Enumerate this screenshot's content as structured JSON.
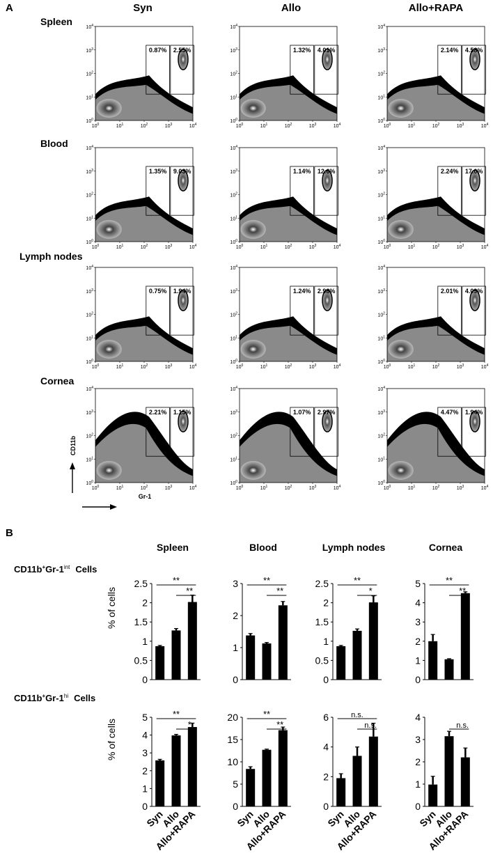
{
  "panel_a": {
    "label": "A",
    "columns": [
      "Syn",
      "Allo",
      "Allo+RAPA"
    ],
    "rows": [
      "Spleen",
      "Blood",
      "Lymph nodes",
      "Cornea"
    ],
    "y_axis_label": "CD11b",
    "x_axis_label": "Gr-1",
    "tick_labels": [
      "10^0",
      "10^1",
      "10^2",
      "10^3",
      "10^4"
    ],
    "gates": [
      [
        [
          "0.87%",
          "2.55%"
        ],
        [
          "1.32%",
          "4.01%"
        ],
        [
          "2.14%",
          "4.58%"
        ]
      ],
      [
        [
          "1.35%",
          "9.03%"
        ],
        [
          "1.14%",
          "12.6%"
        ],
        [
          "2.24%",
          "17.0%"
        ]
      ],
      [
        [
          "0.75%",
          "1.94%"
        ],
        [
          "1.24%",
          "2.98%"
        ],
        [
          "2.01%",
          "4.09%"
        ]
      ],
      [
        [
          "2.21%",
          "1.15%"
        ],
        [
          "1.07%",
          "2.97%"
        ],
        [
          "4.47%",
          "1.94%"
        ]
      ]
    ]
  },
  "panel_b": {
    "label": "B",
    "row_labels": [
      {
        "base": "CD11b",
        "sup1": "+",
        "mid": "Gr-1",
        "sup2": "int",
        "tail": "Cells"
      },
      {
        "base": "CD11b",
        "sup1": "+",
        "mid": "Gr-1",
        "sup2": "hi",
        "tail": "Cells"
      }
    ],
    "y_axis_label": "% of cells"
  },
  "chart_data": [
    {
      "type": "bar",
      "tissue": "Spleen",
      "population": "CD11b+Gr-1int",
      "categories": [
        "Syn",
        "Allo",
        "Allo+RAPA"
      ],
      "values": [
        0.87,
        1.28,
        2.02
      ],
      "errors": [
        0.02,
        0.05,
        0.18
      ],
      "ylim": [
        0,
        2.5
      ],
      "yticks": [
        "0",
        "0.5",
        "1",
        "1.5",
        "2",
        "2.5"
      ],
      "ytick_values": [
        0,
        0.5,
        1,
        1.5,
        2,
        2.5
      ],
      "significance": [
        {
          "from": 0,
          "to": 2,
          "label": "**"
        },
        {
          "from": 1,
          "to": 2,
          "label": "**"
        }
      ]
    },
    {
      "type": "bar",
      "tissue": "Blood",
      "population": "CD11b+Gr-1int",
      "categories": [
        "Syn",
        "Allo",
        "Allo+RAPA"
      ],
      "values": [
        1.38,
        1.13,
        2.32
      ],
      "errors": [
        0.06,
        0.03,
        0.12
      ],
      "ylim": [
        0,
        3
      ],
      "yticks": [
        "0",
        "1",
        "2",
        "3"
      ],
      "ytick_values": [
        0,
        1,
        2,
        3
      ],
      "significance": [
        {
          "from": 0,
          "to": 2,
          "label": "**"
        },
        {
          "from": 1,
          "to": 2,
          "label": "**"
        }
      ]
    },
    {
      "type": "bar",
      "tissue": "Lymph nodes",
      "population": "CD11b+Gr-1int",
      "categories": [
        "Syn",
        "Allo",
        "Allo+RAPA"
      ],
      "values": [
        0.87,
        1.27,
        2.01
      ],
      "errors": [
        0.02,
        0.05,
        0.17
      ],
      "ylim": [
        0,
        2.5
      ],
      "yticks": [
        "0",
        "0.5",
        "1",
        "1.5",
        "2",
        "2.5"
      ],
      "ytick_values": [
        0,
        0.5,
        1,
        1.5,
        2,
        2.5
      ],
      "significance": [
        {
          "from": 0,
          "to": 2,
          "label": "**"
        },
        {
          "from": 1,
          "to": 2,
          "label": "*"
        }
      ]
    },
    {
      "type": "bar",
      "tissue": "Cornea",
      "population": "CD11b+Gr-1int",
      "categories": [
        "Syn",
        "Allo",
        "Allo+RAPA"
      ],
      "values": [
        2.0,
        1.06,
        4.5
      ],
      "errors": [
        0.35,
        0.03,
        0.07
      ],
      "ylim": [
        0,
        5
      ],
      "yticks": [
        "0",
        "1",
        "2",
        "3",
        "4",
        "5"
      ],
      "ytick_values": [
        0,
        1,
        2,
        3,
        4,
        5
      ],
      "significance": [
        {
          "from": 0,
          "to": 2,
          "label": "**"
        },
        {
          "from": 1,
          "to": 2,
          "label": "**"
        }
      ]
    },
    {
      "type": "bar",
      "tissue": "Spleen",
      "population": "CD11b+Gr-1hi",
      "categories": [
        "Syn",
        "Allo",
        "Allo+RAPA"
      ],
      "values": [
        2.58,
        3.98,
        4.45
      ],
      "errors": [
        0.06,
        0.06,
        0.22
      ],
      "ylim": [
        0,
        5
      ],
      "yticks": [
        "0",
        "1",
        "2",
        "3",
        "4",
        "5"
      ],
      "ytick_values": [
        0,
        1,
        2,
        3,
        4,
        5
      ],
      "significance": [
        {
          "from": 0,
          "to": 2,
          "label": "**"
        },
        {
          "from": 1,
          "to": 2,
          "label": "*"
        }
      ]
    },
    {
      "type": "bar",
      "tissue": "Blood",
      "population": "CD11b+Gr-1hi",
      "categories": [
        "Syn",
        "Allo",
        "Allo+RAPA"
      ],
      "values": [
        8.4,
        12.7,
        17.1
      ],
      "errors": [
        0.5,
        0.15,
        0.7
      ],
      "ylim": [
        0,
        20
      ],
      "yticks": [
        "0",
        "5",
        "10",
        "15",
        "20"
      ],
      "ytick_values": [
        0,
        5,
        10,
        15,
        20
      ],
      "significance": [
        {
          "from": 0,
          "to": 2,
          "label": "**"
        },
        {
          "from": 1,
          "to": 2,
          "label": "**"
        }
      ]
    },
    {
      "type": "bar",
      "tissue": "Lymph nodes",
      "population": "CD11b+Gr-1hi",
      "categories": [
        "Syn",
        "Allo",
        "Allo+RAPA"
      ],
      "values": [
        1.9,
        3.4,
        4.7
      ],
      "errors": [
        0.3,
        0.6,
        0.9
      ],
      "ylim": [
        0,
        6
      ],
      "yticks": [
        "0",
        "2",
        "4",
        "6"
      ],
      "ytick_values": [
        0,
        2,
        4,
        6
      ],
      "significance": [
        {
          "from": 0,
          "to": 2,
          "label": "n.s."
        },
        {
          "from": 1,
          "to": 2,
          "label": "n.s."
        }
      ]
    },
    {
      "type": "bar",
      "tissue": "Cornea",
      "population": "CD11b+Gr-1hi",
      "categories": [
        "Syn",
        "Allo",
        "Allo+RAPA"
      ],
      "values": [
        0.98,
        3.15,
        2.2
      ],
      "errors": [
        0.37,
        0.22,
        0.42
      ],
      "ylim": [
        0,
        4
      ],
      "yticks": [
        "0",
        "1",
        "2",
        "3",
        "4"
      ],
      "ytick_values": [
        0,
        1,
        2,
        3,
        4
      ],
      "significance": [
        {
          "from": 1,
          "to": 2,
          "label": "n.s."
        }
      ]
    }
  ]
}
